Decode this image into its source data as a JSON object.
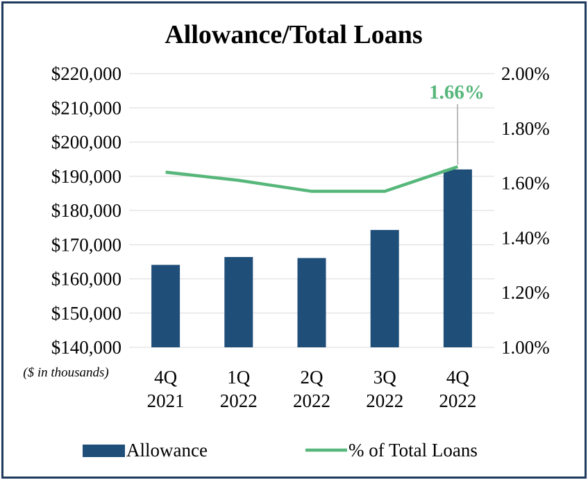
{
  "chart_data": {
    "type": "bar",
    "title": "Allowance/Total Loans",
    "note": "($ in thousands)",
    "categories": [
      [
        "4Q",
        "2021"
      ],
      [
        "1Q",
        "2022"
      ],
      [
        "2Q",
        "2022"
      ],
      [
        "3Q",
        "2022"
      ],
      [
        "4Q",
        "2022"
      ]
    ],
    "series": [
      {
        "name": "Allowance",
        "type": "bar",
        "axis": "left",
        "color": "#1f4e79",
        "values": [
          164100,
          166400,
          166100,
          174300,
          192000
        ]
      },
      {
        "name": "% of Total Loans",
        "type": "line",
        "axis": "right",
        "color": "#57b77b",
        "values": [
          1.64,
          1.61,
          1.57,
          1.57,
          1.66
        ]
      }
    ],
    "y_left": {
      "min": 140000,
      "max": 220000,
      "step": 10000,
      "tick_labels": [
        "$140,000",
        "$150,000",
        "$160,000",
        "$170,000",
        "$180,000",
        "$190,000",
        "$200,000",
        "$210,000",
        "$220,000"
      ]
    },
    "y_right": {
      "min": 1.0,
      "max": 2.0,
      "step": 0.2,
      "tick_labels": [
        "1.00%",
        "1.20%",
        "1.40%",
        "1.60%",
        "1.80%",
        "2.00%"
      ]
    },
    "annotation": {
      "text": "1.66%",
      "series": "% of Total Loans",
      "index": 4,
      "color": "#57b77b"
    },
    "grid": true,
    "legend_position": "bottom",
    "frame_color": "#1f3a5c"
  }
}
